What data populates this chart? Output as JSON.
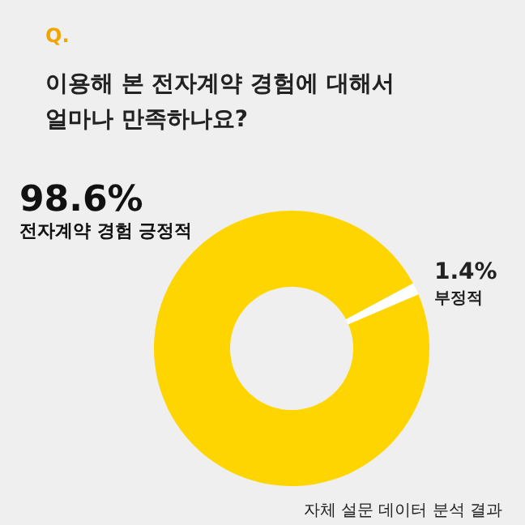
{
  "chart_data": {
    "type": "donut",
    "title": "이용해 본 전자계약 경험에 대해서\n얼마나 만족하나요?",
    "categories": [
      "전자계약 경험 긍정적",
      "부정적"
    ],
    "values": [
      98.6,
      1.4
    ],
    "colors": [
      "#ffd500",
      "#ffffff"
    ],
    "value_labels": [
      "98.6%",
      "1.4%"
    ],
    "legend": false,
    "annotations": [
      "Q.",
      "자체 설문 데이터 분석 결과"
    ]
  }
}
